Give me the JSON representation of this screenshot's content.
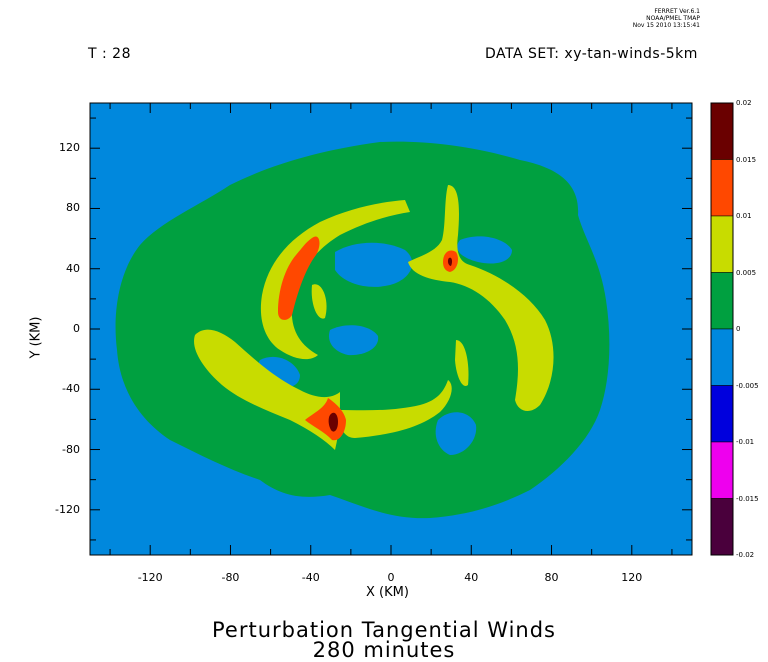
{
  "header": {
    "left": "T : 28",
    "right": "DATA SET: xy-tan-winds-5km",
    "ferret_lines": [
      "FERRET Ver.6.1",
      "NOAA/PMEL TMAP",
      "Nov 15 2010 13:15:41"
    ]
  },
  "chart_data": {
    "type": "heatmap",
    "title": "Perturbation Tangential Winds",
    "subtitle": "280 minutes",
    "xlabel": "X (KM)",
    "ylabel": "Y (KM)",
    "xlim": [
      -150,
      150
    ],
    "ylim": [
      -150,
      150
    ],
    "x_ticks": [
      -120,
      -80,
      -40,
      0,
      40,
      80,
      120
    ],
    "y_ticks": [
      120,
      80,
      40,
      0,
      -40,
      -80,
      -120
    ],
    "colorbar": {
      "levels": [
        -0.02,
        -0.015,
        -0.01,
        -0.005,
        0,
        0.005,
        0.01,
        0.015,
        0.02
      ],
      "labels": [
        "0.02",
        "0.015",
        "0.01",
        "0.005",
        "0",
        "-0.005",
        "-0.01",
        "-0.015",
        "-0.02"
      ],
      "colors": [
        "#4a003c",
        "#ee00ee",
        "#0000dd",
        "#0088dd",
        "#00a040",
        "#c8dc00",
        "#ff4800",
        "#6a0000"
      ]
    },
    "features": [
      {
        "name": "ring",
        "level": "0 to 0.005",
        "center": [
          0,
          -5
        ],
        "rx": 105,
        "ry": 90
      },
      {
        "name": "northwest_arm",
        "level": "0.005 to 0.01",
        "peak": 0.015
      },
      {
        "name": "northeast_arm",
        "level": "0.005 to 0.01",
        "peak": 0.02
      },
      {
        "name": "south_arm",
        "level": "0.005 to 0.01",
        "peak": 0.02
      }
    ]
  }
}
